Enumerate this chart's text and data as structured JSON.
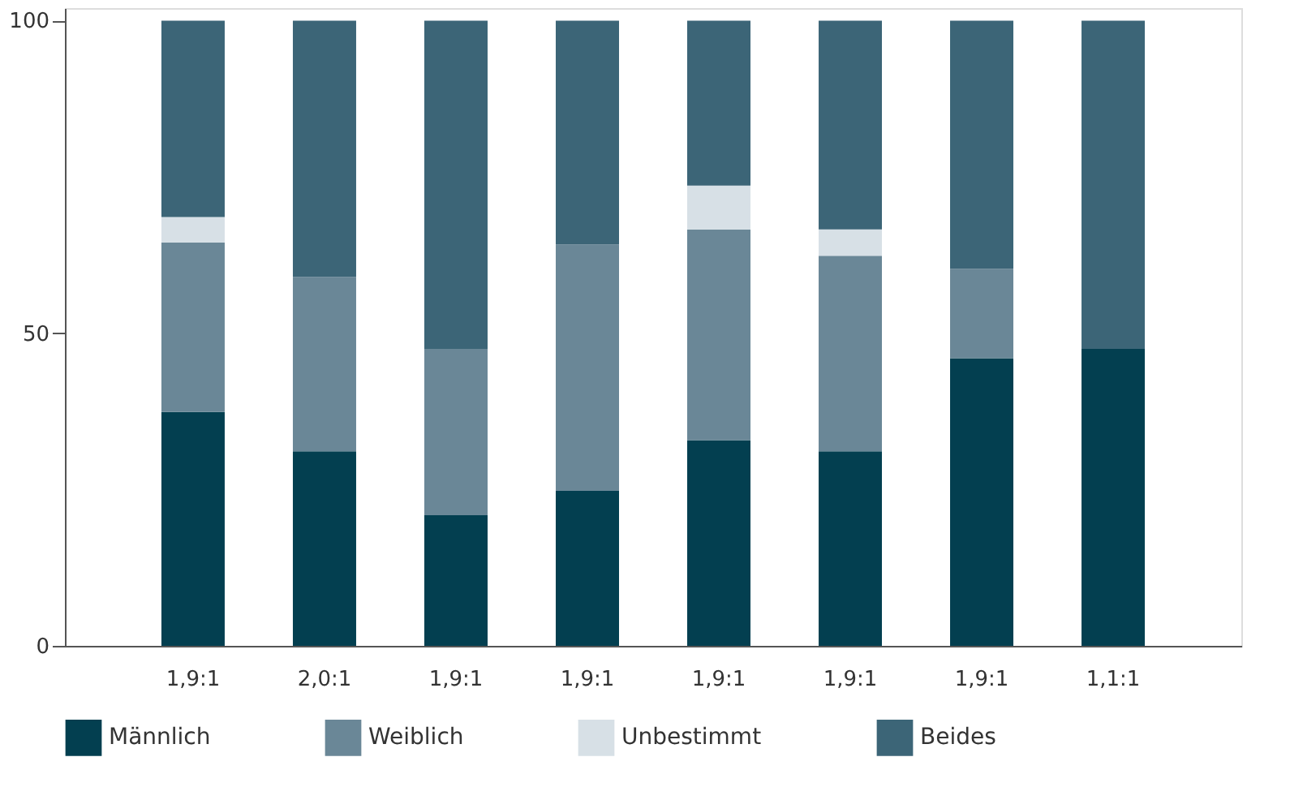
{
  "chart_data": {
    "type": "bar",
    "stacked": true,
    "categories": [
      "1,9:1",
      "2,0:1",
      "1,9:1",
      "1,9:1",
      "1,9:1",
      "1,9:1",
      "1,9:1",
      "1,1:1"
    ],
    "series": [
      {
        "name": "Männlich",
        "color": "#033f50",
        "values": [
          37.4,
          31.1,
          20.9,
          24.8,
          32.9,
          31.1,
          46.0,
          47.5
        ]
      },
      {
        "name": "Weiblich",
        "color": "#6a8797",
        "values": [
          27.1,
          27.9,
          26.6,
          39.4,
          33.7,
          31.3,
          14.3,
          0
        ]
      },
      {
        "name": "Unbestimmt",
        "color": "#d7e0e6",
        "values": [
          4.1,
          0,
          0,
          0,
          7.0,
          4.2,
          0,
          0
        ]
      },
      {
        "name": "Beides",
        "color": "#3c6577",
        "values": [
          31.4,
          41.0,
          52.5,
          35.8,
          26.4,
          33.4,
          39.7,
          52.5
        ]
      }
    ],
    "ylim": [
      0,
      102
    ],
    "yticks": [
      0,
      50,
      100
    ],
    "grid": false,
    "legend": "bottom"
  }
}
